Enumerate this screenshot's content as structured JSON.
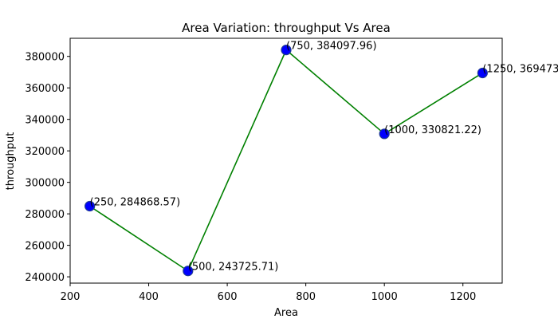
{
  "chart_data": {
    "type": "line",
    "title": "Area Variation: throughput Vs Area",
    "xlabel": "Area",
    "ylabel": "throughput",
    "xlim": [
      200,
      1300
    ],
    "ylim": [
      236000,
      391500
    ],
    "xticks": [
      200,
      400,
      600,
      800,
      1000,
      1200
    ],
    "yticks": [
      240000,
      260000,
      280000,
      300000,
      320000,
      340000,
      360000,
      380000
    ],
    "grid": false,
    "series": [
      {
        "x": [
          250,
          500,
          750,
          1000,
          1250
        ],
        "y": [
          284868.57,
          243725.71,
          384097.96,
          330821.22,
          369473.0
        ],
        "line_color": "#008000",
        "marker_color": "#0000ff",
        "marker_edge_color": "#1f3a93"
      }
    ],
    "annotations": [
      "(250, 284868.57)",
      "(500, 243725.71)",
      "(750, 384097.96)",
      "(1000, 330821.22)",
      "(1250, 369473"
    ]
  }
}
